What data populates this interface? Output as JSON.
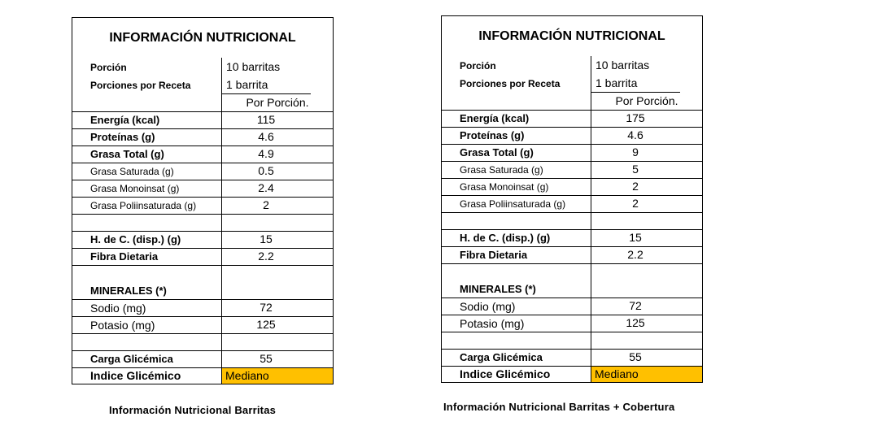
{
  "panels": [
    {
      "title": "INFORMACIÓN NUTRICIONAL",
      "portion_label": "Porción",
      "portion_value": "10 barritas",
      "servings_label": "Porciones por Receta",
      "servings_value": "1 barrita",
      "column_header": "Por Porción.",
      "energy_label": "Energía (kcal)",
      "energy_value": "115",
      "protein_label": "Proteínas (g)",
      "protein_value": "4.6",
      "fat_label": "Grasa Total (g)",
      "fat_value": "4.9",
      "satfat_label": "Grasa Saturada (g)",
      "satfat_value": "0.5",
      "monofat_label": "Grasa Monoinsat (g)",
      "monofat_value": "2.4",
      "polyfat_label": "Grasa Poliinsaturada (g)",
      "polyfat_value": "2",
      "carb_label": "H. de C. (disp.) (g)",
      "carb_value": "15",
      "fiber_label": "Fibra Dietaria",
      "fiber_value": "2.2",
      "minerals_label": "MINERALES (*)",
      "sodium_label": "Sodio (mg)",
      "sodium_value": "72",
      "potassium_label": "Potasio (mg)",
      "potassium_value": "125",
      "gl_label": "Carga Glicémica",
      "gl_value": "55",
      "gi_label": "Indice Glicémico",
      "gi_value": "Mediano",
      "caption": "Información Nutricional Barritas"
    },
    {
      "title": "INFORMACIÓN NUTRICIONAL",
      "portion_label": "Porción",
      "portion_value": "10 barritas",
      "servings_label": "Porciones por Receta",
      "servings_value": "1 barrita",
      "column_header": "Por Porción.",
      "energy_label": "Energía (kcal)",
      "energy_value": "175",
      "protein_label": "Proteínas (g)",
      "protein_value": "4.6",
      "fat_label": "Grasa Total (g)",
      "fat_value": "9",
      "satfat_label": "Grasa Saturada (g)",
      "satfat_value": "5",
      "monofat_label": "Grasa Monoinsat (g)",
      "monofat_value": "2",
      "polyfat_label": "Grasa Poliinsaturada (g)",
      "polyfat_value": "2",
      "carb_label": "H. de C. (disp.) (g)",
      "carb_value": "15",
      "fiber_label": "Fibra Dietaria",
      "fiber_value": "2.2",
      "minerals_label": "MINERALES (*)",
      "sodium_label": "Sodio (mg)",
      "sodium_value": "72",
      "potassium_label": "Potasio (mg)",
      "potassium_value": "125",
      "gl_label": "Carga Glicémica",
      "gl_value": "55",
      "gi_label": "Indice Glicémico",
      "gi_value": "Mediano",
      "caption": "Información Nutricional Barritas + Cobertura"
    }
  ],
  "colors": {
    "highlight": "#FFC000",
    "border": "#000000"
  }
}
